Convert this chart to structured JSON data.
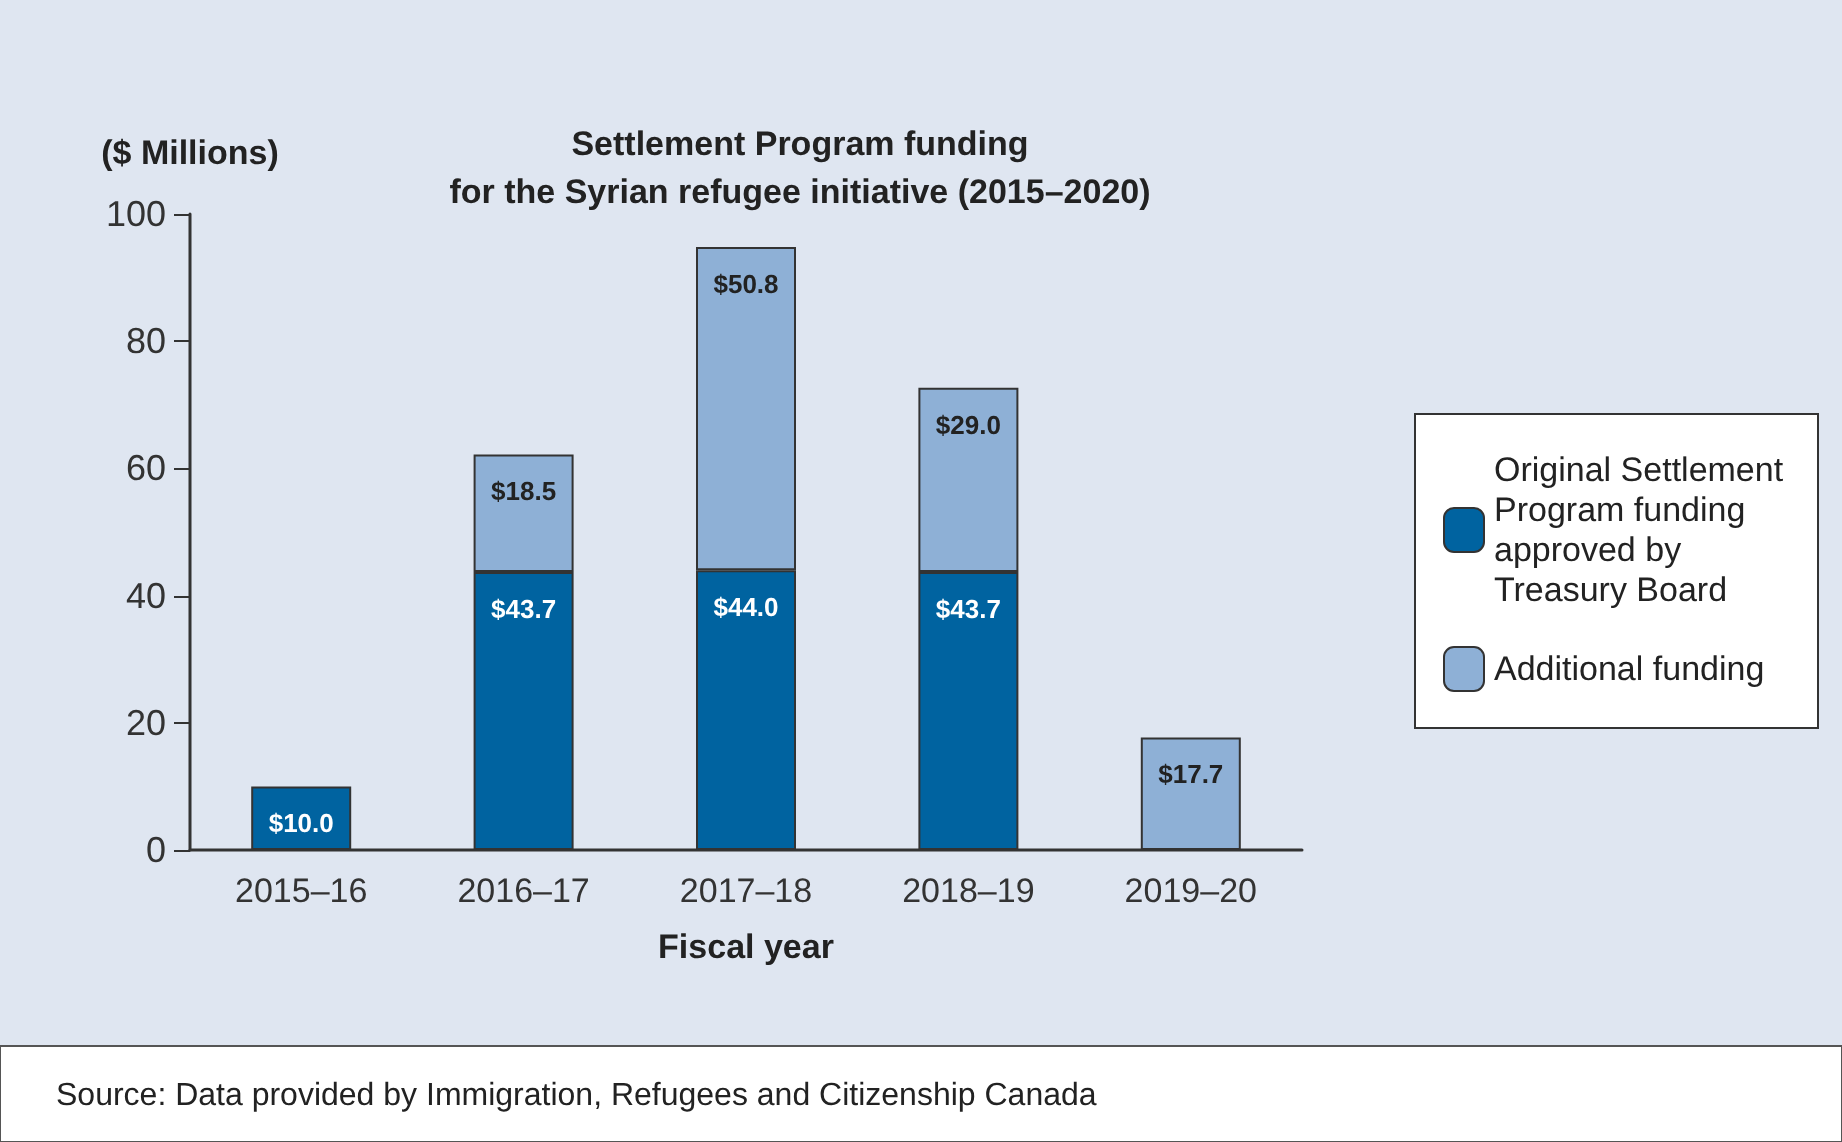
{
  "chart_data": {
    "type": "bar",
    "title": "Settlement Program funding\nfor the Syrian refugee initiative (2015–2020)",
    "ylabel": "($ Millions)",
    "xlabel": "Fiscal year",
    "categories": [
      "2015–16",
      "2016–17",
      "2017–18",
      "2018–19",
      "2019–20"
    ],
    "stacked": true,
    "series": [
      {
        "name": "Original Settlement Program funding approved by Treasury Board",
        "color": "#0063a0",
        "values": [
          10.0,
          43.7,
          44.0,
          43.7,
          null
        ],
        "value_labels": [
          "$10.0",
          "$43.7",
          "$44.0",
          "$43.7",
          null
        ]
      },
      {
        "name": "Additional funding",
        "color": "#8eb0d6",
        "values": [
          null,
          18.5,
          50.8,
          29.0,
          17.7
        ],
        "value_labels": [
          null,
          "$18.5",
          "$50.8",
          "$29.0",
          "$17.7"
        ]
      }
    ],
    "ylim": [
      0,
      100
    ],
    "yticks": [
      0,
      20,
      40,
      60,
      80,
      100
    ],
    "grid": false,
    "legend": "right",
    "annotations": [
      "Source: Data provided by Immigration, Refugees and Citizenship Canada"
    ]
  }
}
